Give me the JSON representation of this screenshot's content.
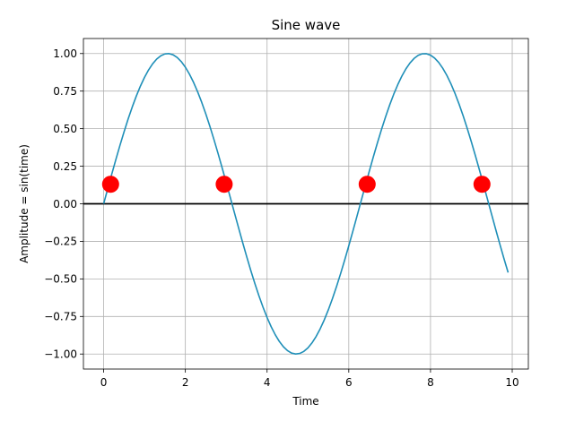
{
  "chart_data": {
    "type": "line",
    "title": "Sine wave",
    "xlabel": "Time",
    "ylabel": "Amplitude = sin(time)",
    "xlim": [
      -0.495,
      10.395
    ],
    "ylim": [
      -1.1,
      1.1
    ],
    "grid": true,
    "xticks": [
      0,
      2,
      4,
      6,
      8,
      10
    ],
    "xtick_labels": [
      "0",
      "2",
      "4",
      "6",
      "8",
      "10"
    ],
    "yticks": [
      1.0,
      0.75,
      0.5,
      0.25,
      0.0,
      -0.25,
      -0.5,
      -0.75,
      -1.0
    ],
    "ytick_labels": [
      "1.00",
      "0.75",
      "0.50",
      "0.25",
      "0.00",
      "−0.25",
      "−0.50",
      "−0.75",
      "−1.00"
    ],
    "series": [
      {
        "function": "sin",
        "x_start": 0,
        "x_end": 9.9,
        "x_step": 0.1,
        "color": "#1f8fb8"
      }
    ],
    "horizontal_line": {
      "y": 0,
      "color": "#000000"
    },
    "markers": {
      "color": "#ff0000",
      "points": [
        {
          "x": 0.17,
          "y": 0.13
        },
        {
          "x": 2.95,
          "y": 0.13
        },
        {
          "x": 6.45,
          "y": 0.13
        },
        {
          "x": 9.26,
          "y": 0.13
        }
      ]
    }
  }
}
